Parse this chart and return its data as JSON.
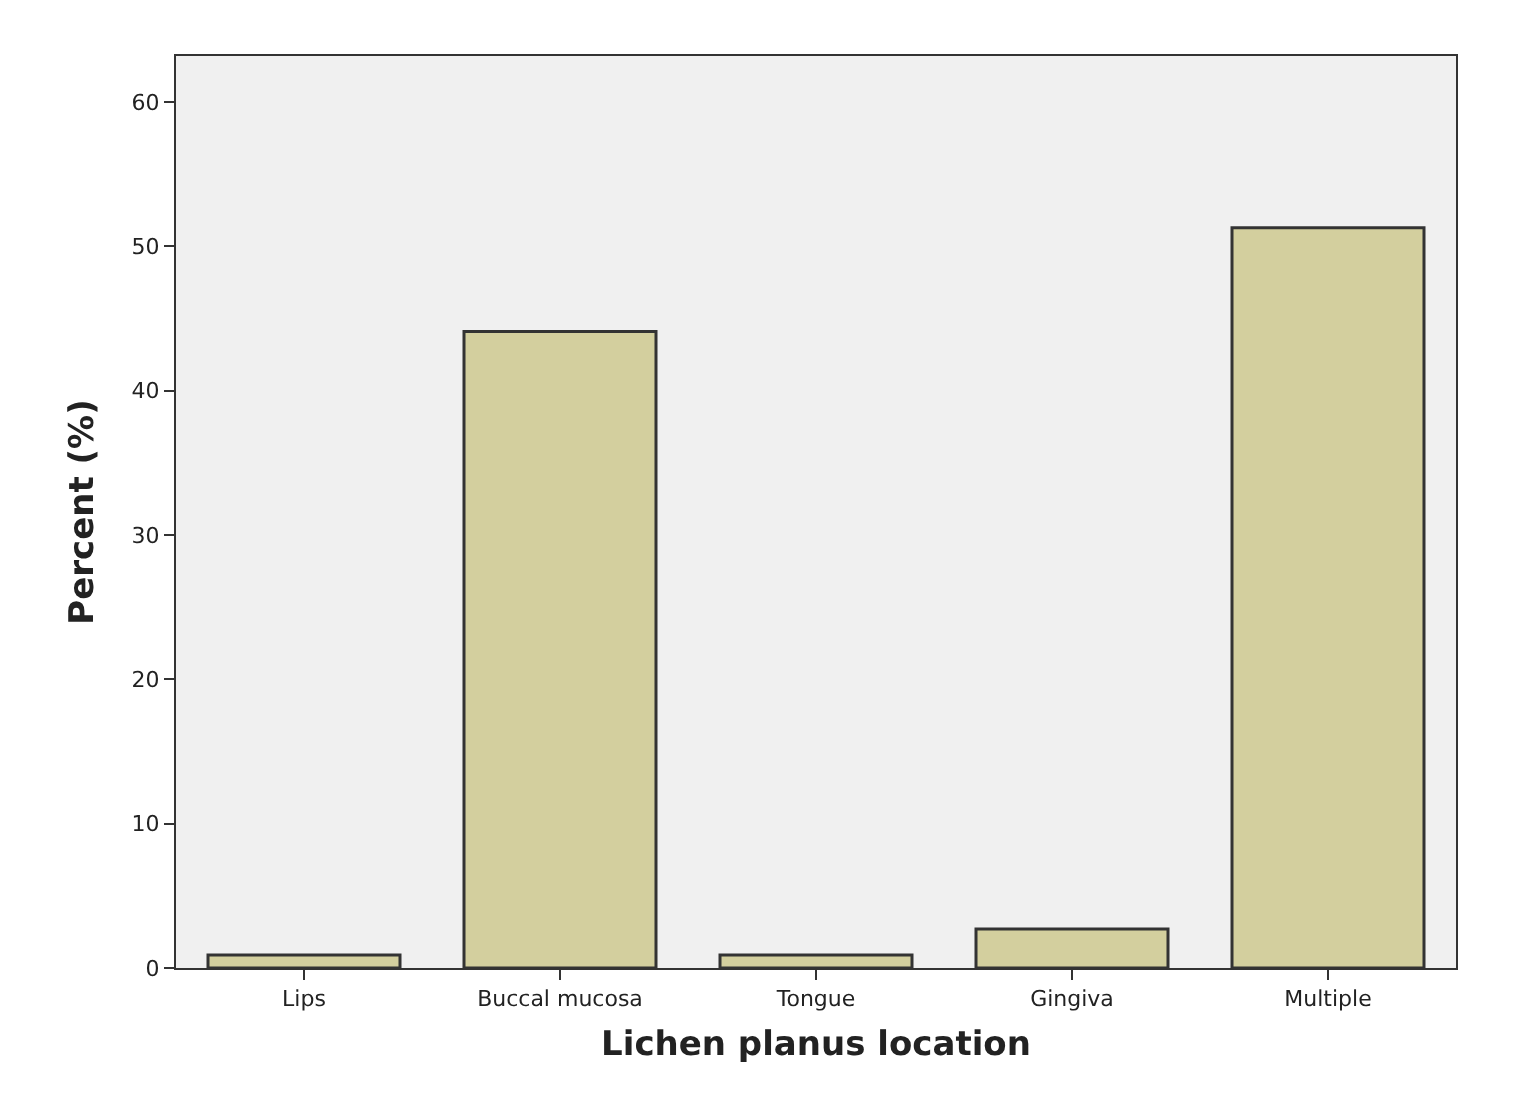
{
  "chart_data": {
    "type": "bar",
    "xlabel": "Lichen planus location",
    "ylabel": "Percent (%)",
    "categories": [
      "Lips",
      "Buccal mucosa",
      "Tongue",
      "Gingiva",
      "Multiple"
    ],
    "values": [
      0.9,
      44.1,
      0.9,
      2.7,
      51.3
    ],
    "color": "#d3cf9e",
    "ylim": [
      0,
      63.2
    ],
    "yticks": [
      0,
      10,
      20,
      30,
      40,
      50,
      60
    ],
    "grid": false
  }
}
